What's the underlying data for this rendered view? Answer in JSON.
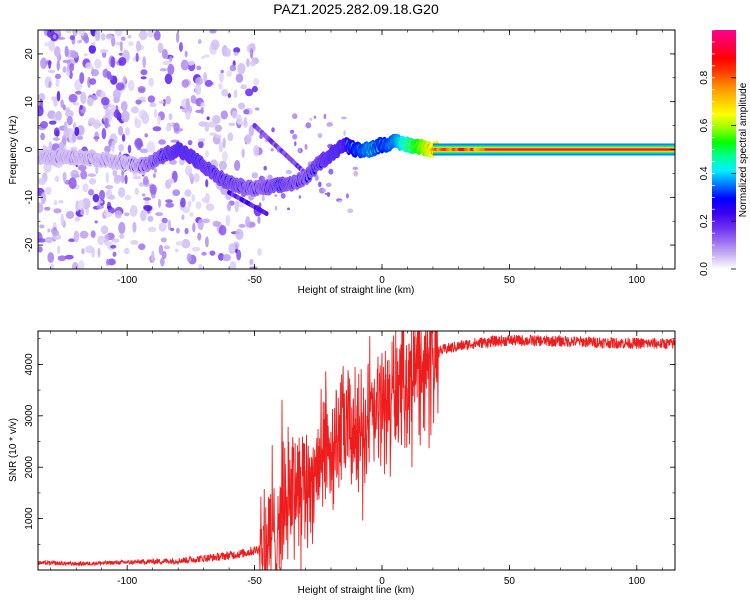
{
  "title": "PAZ1.2025.282.09.18.G20",
  "chart_data": [
    {
      "type": "heatmap",
      "name": "spectrogram",
      "xlabel": "Height of straight line (km)",
      "ylabel": "Frequency (Hz)",
      "xlim": [
        -135,
        115
      ],
      "ylim": [
        -25,
        25
      ],
      "xticks": [
        -100,
        -50,
        0,
        50,
        100
      ],
      "yticks": [
        -20,
        -10,
        0,
        10,
        20
      ],
      "colorbar": {
        "label": "Normalized spectral amplitude",
        "range": [
          0,
          1
        ],
        "ticks": [
          0.0,
          0.2,
          0.4,
          0.6,
          0.8
        ],
        "colors": [
          "#ffffff",
          "#c9b4f2",
          "#9a6cf0",
          "#6a2cf0",
          "#3a00f0",
          "#0000ff",
          "#0078ff",
          "#00f0ff",
          "#00ff96",
          "#00ff00",
          "#96ff00",
          "#ffff00",
          "#ffc800",
          "#ff8c00",
          "#ff3c00",
          "#ff0000",
          "#ff0050",
          "#ff008c"
        ]
      },
      "ridge": [
        {
          "x": -135,
          "f": -1.5,
          "amp": 0.12
        },
        {
          "x": -120,
          "f": -1.5,
          "amp": 0.12
        },
        {
          "x": -110,
          "f": -2,
          "amp": 0.14
        },
        {
          "x": -100,
          "f": -3,
          "amp": 0.18
        },
        {
          "x": -95,
          "f": -3.5,
          "amp": 0.22
        },
        {
          "x": -90,
          "f": -2.5,
          "amp": 0.26
        },
        {
          "x": -85,
          "f": -1,
          "amp": 0.3
        },
        {
          "x": -80,
          "f": 0,
          "amp": 0.33
        },
        {
          "x": -75,
          "f": -1.5,
          "amp": 0.33
        },
        {
          "x": -70,
          "f": -3.5,
          "amp": 0.31
        },
        {
          "x": -65,
          "f": -5.5,
          "amp": 0.3
        },
        {
          "x": -60,
          "f": -7,
          "amp": 0.29
        },
        {
          "x": -55,
          "f": -7.8,
          "amp": 0.28
        },
        {
          "x": -50,
          "f": -8.2,
          "amp": 0.26
        },
        {
          "x": -45,
          "f": -8,
          "amp": 0.28
        },
        {
          "x": -40,
          "f": -7.5,
          "amp": 0.3
        },
        {
          "x": -35,
          "f": -7,
          "amp": 0.28
        },
        {
          "x": -30,
          "f": -6,
          "amp": 0.27
        },
        {
          "x": -25,
          "f": -3,
          "amp": 0.3
        },
        {
          "x": -20,
          "f": -1,
          "amp": 0.33
        },
        {
          "x": -15,
          "f": 1,
          "amp": 0.35
        },
        {
          "x": -10,
          "f": 0,
          "amp": 0.45
        },
        {
          "x": -5,
          "f": 0,
          "amp": 0.5
        },
        {
          "x": 0,
          "f": 1,
          "amp": 0.45
        },
        {
          "x": 5,
          "f": 1.5,
          "amp": 0.5
        },
        {
          "x": 10,
          "f": 1,
          "amp": 0.6
        },
        {
          "x": 15,
          "f": 0.5,
          "amp": 0.7
        },
        {
          "x": 20,
          "f": 0,
          "amp": 0.8
        },
        {
          "x": 30,
          "f": 0,
          "amp": 0.95
        },
        {
          "x": 50,
          "f": 0,
          "amp": 1.0
        },
        {
          "x": 80,
          "f": 0,
          "amp": 1.0
        },
        {
          "x": 115,
          "f": 0,
          "amp": 1.0
        }
      ]
    },
    {
      "type": "line",
      "name": "snr",
      "xlabel": "Height of straight line (km)",
      "ylabel": "SNR (10 * v/v)",
      "xlim": [
        -135,
        115
      ],
      "ylim": [
        0,
        4650
      ],
      "xticks": [
        -100,
        -50,
        0,
        50,
        100
      ],
      "yticks": [
        1000,
        2000,
        3000,
        4000
      ],
      "series": [
        {
          "name": "SNR",
          "color": "#ee1c1c",
          "x": [
            -135,
            -120,
            -100,
            -80,
            -65,
            -55,
            -50,
            -47,
            -45,
            -42,
            -40,
            -37,
            -35,
            -32,
            -30,
            -27,
            -25,
            -22,
            -20,
            -17,
            -15,
            -12,
            -10,
            -7,
            -5,
            -2,
            0,
            3,
            5,
            8,
            10,
            13,
            15,
            18,
            20,
            25,
            30,
            35,
            40,
            45,
            50,
            60,
            70,
            80,
            90,
            100,
            115
          ],
          "y": [
            140,
            120,
            150,
            180,
            250,
            320,
            380,
            450,
            520,
            700,
            1100,
            1500,
            1700,
            1800,
            1700,
            1850,
            2100,
            2300,
            2400,
            2600,
            2750,
            2700,
            2650,
            2800,
            2900,
            3050,
            3200,
            3300,
            3400,
            3550,
            3700,
            3900,
            4050,
            4150,
            4200,
            4300,
            4350,
            4400,
            4430,
            4450,
            4470,
            4460,
            4450,
            4440,
            4420,
            4410,
            4400
          ]
        }
      ]
    }
  ]
}
